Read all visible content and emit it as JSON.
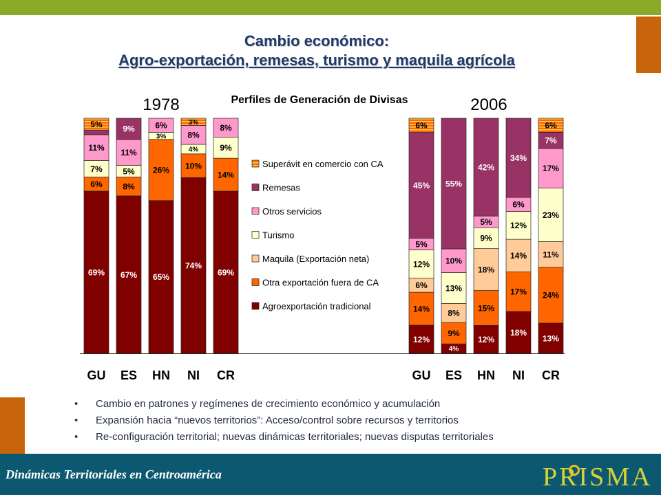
{
  "title": {
    "line1": "Cambio económico:",
    "line2": "Agro-exportación, remesas, turismo y maquila agrícola"
  },
  "chart_data": {
    "type": "bar",
    "subtype": "stacked-100-percent",
    "title": "Perfiles de Generación de Divisas",
    "categories": [
      "GU",
      "ES",
      "HN",
      "NI",
      "CR"
    ],
    "panels": [
      {
        "year": "1978",
        "series": [
          {
            "name": "Agroexportación tradicional",
            "values": [
              69,
              67,
              65,
              74,
              69
            ],
            "labels": [
              "69%",
              "67%",
              "65%",
              "74%",
              "69%"
            ]
          },
          {
            "name": "Otra exportación fuera de CA",
            "values": [
              6,
              8,
              26,
              10,
              14
            ],
            "labels": [
              "6%",
              "8%",
              "26%",
              "10%",
              "14%"
            ]
          },
          {
            "name": "Maquila (Exportación neta)",
            "values": [
              0,
              0,
              0,
              0,
              0
            ],
            "labels": [
              "",
              "",
              "",
              "",
              ""
            ]
          },
          {
            "name": "Turismo",
            "values": [
              7,
              5,
              3,
              4,
              9
            ],
            "labels": [
              "7%",
              "5%",
              "3%",
              "4%",
              "9%"
            ]
          },
          {
            "name": "Otros servicios",
            "values": [
              11,
              11,
              6,
              8,
              8
            ],
            "labels": [
              "11%",
              "11%",
              "6%",
              "8%",
              "8%"
            ]
          },
          {
            "name": "Remesas",
            "values": [
              2,
              9,
              0,
              0,
              0
            ],
            "labels": [
              "",
              "9%",
              "",
              "",
              ""
            ]
          },
          {
            "name": "Superávit en comercio con CA",
            "values": [
              5,
              0,
              0,
              3,
              0
            ],
            "labels": [
              "5%",
              "",
              "",
              "3%",
              ""
            ]
          }
        ]
      },
      {
        "year": "2006",
        "series": [
          {
            "name": "Agroexportación tradicional",
            "values": [
              12,
              4,
              12,
              18,
              13
            ],
            "labels": [
              "12%",
              "4%",
              "12%",
              "18%",
              "13%"
            ]
          },
          {
            "name": "Otra exportación fuera de CA",
            "values": [
              14,
              9,
              15,
              17,
              24
            ],
            "labels": [
              "14%",
              "9%",
              "15%",
              "17%",
              "24%"
            ]
          },
          {
            "name": "Maquila (Exportación neta)",
            "values": [
              6,
              8,
              18,
              14,
              11
            ],
            "labels": [
              "6%",
              "8%",
              "18%",
              "14%",
              "11%"
            ]
          },
          {
            "name": "Turismo",
            "values": [
              12,
              13,
              9,
              12,
              23
            ],
            "labels": [
              "12%",
              "13%",
              "9%",
              "12%",
              "23%"
            ]
          },
          {
            "name": "Otros servicios",
            "values": [
              5,
              10,
              5,
              6,
              17
            ],
            "labels": [
              "5%",
              "10%",
              "5%",
              "6%",
              "17%"
            ]
          },
          {
            "name": "Remesas",
            "values": [
              45,
              55,
              42,
              34,
              7
            ],
            "labels": [
              "45%",
              "55%",
              "42%",
              "34%",
              "7%"
            ]
          },
          {
            "name": "Superávit en comercio con CA",
            "values": [
              6,
              0,
              0,
              0,
              6
            ],
            "labels": [
              "6%",
              "",
              "",
              "",
              "6%"
            ]
          }
        ]
      }
    ],
    "legend": [
      "Superávit en comercio con CA",
      "Remesas",
      "Otros servicios",
      "Turismo",
      "Maquila (Exportación neta)",
      "Otra exportación fuera de CA",
      "Agroexportación tradicional"
    ],
    "colors": {
      "Agroexportación tradicional": "#800000",
      "Otra exportación fuera de CA": "#ff6600",
      "Maquila (Exportación neta)": "#ffcc99",
      "Turismo": "#ffffcc",
      "Otros servicios": "#ff99cc",
      "Remesas": "#993366",
      "Superávit en comercio con CA": "#ff6600"
    },
    "legend_placement": "center",
    "grid": false
  },
  "bullets": [
    "Cambio en patrones y regímenes de crecimiento económico y acumulación",
    "Expansión hacia “nuevos territorios”: Acceso/control sobre recursos y territorios",
    "Re-configuración territorial; nuevas dinámicas territoriales; nuevas disputas territoriales"
  ],
  "footer": {
    "text": "Dinámicas Territoriales en Centroamérica",
    "logo": "PRISMA"
  }
}
